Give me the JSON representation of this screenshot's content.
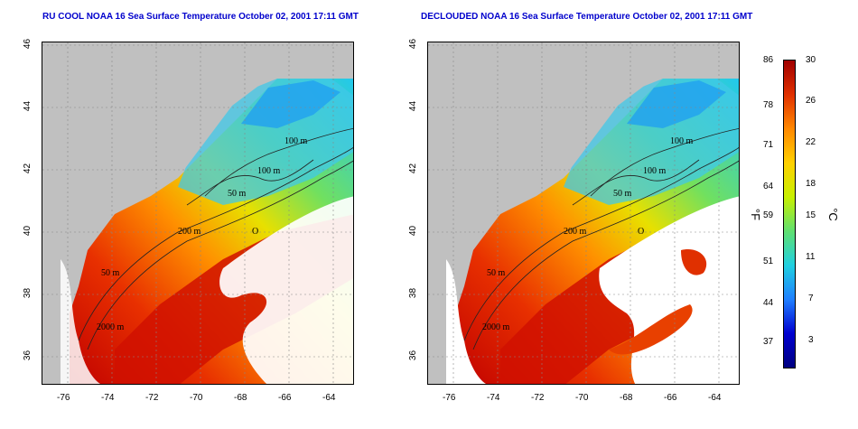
{
  "titles": {
    "left": "RU COOL NOAA 16 Sea Surface Temperature October 02, 2001 17:11 GMT",
    "right": "DECLOUDED NOAA 16 Sea Surface Temperature October 02, 2001 17:11 GMT"
  },
  "axes": {
    "lon_ticks": [
      "-76",
      "-74",
      "-72",
      "-70",
      "-68",
      "-66",
      "-64"
    ],
    "lat_ticks": [
      "46",
      "44",
      "42",
      "40",
      "38",
      "36"
    ]
  },
  "contour_labels": {
    "c100a": "100 m",
    "c100b": "100 m",
    "c50a": "50 m",
    "c200": "200 m",
    "c50b": "50 m",
    "c2000": "2000 m",
    "marker": "O"
  },
  "colorbar": {
    "fahrenheit_ticks": [
      "86",
      "78",
      "71",
      "64",
      "59",
      "51",
      "44",
      "37"
    ],
    "celsius_ticks": [
      "30",
      "26",
      "22",
      "18",
      "15",
      "11",
      "7",
      "3"
    ],
    "fahrenheit_unit": "°F",
    "celsius_unit": "°C",
    "colors": [
      "#a00000",
      "#e03000",
      "#ff8800",
      "#ffd000",
      "#c8f000",
      "#60e070",
      "#20d0e0",
      "#2080ff",
      "#0000d0",
      "#000080"
    ]
  },
  "map_colors": {
    "land": "#c0c0c0",
    "cloud": "#ffffff"
  }
}
